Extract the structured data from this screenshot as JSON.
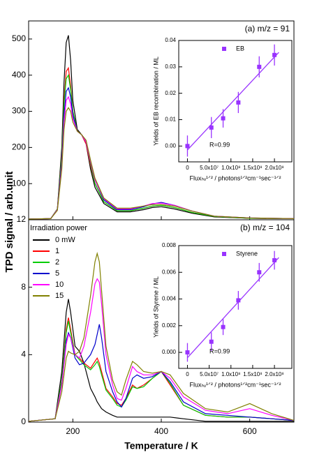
{
  "chart_data": [
    {
      "type": "line",
      "annotation": "(a) m/z = 91",
      "ylabel": "TPD signal / arb.unit",
      "xlim": [
        100,
        700
      ],
      "xticks": [
        200,
        400,
        600
      ],
      "ylim": [
        0,
        550
      ],
      "yticks": [
        100,
        200,
        300,
        400,
        500
      ],
      "x": [
        100,
        150,
        165,
        175,
        180,
        185,
        190,
        195,
        200,
        210,
        220,
        230,
        240,
        250,
        270,
        300,
        330,
        360,
        380,
        400,
        430,
        470,
        520,
        600,
        700
      ],
      "series": [
        {
          "color": "#000000",
          "values": [
            2,
            3,
            30,
            200,
            380,
            490,
            510,
            440,
            330,
            250,
            235,
            210,
            140,
            90,
            45,
            22,
            22,
            28,
            34,
            36,
            30,
            18,
            8,
            4,
            3
          ]
        },
        {
          "color": "#ff0000",
          "values": [
            2,
            3,
            30,
            180,
            330,
            410,
            420,
            370,
            300,
            245,
            235,
            210,
            150,
            100,
            50,
            25,
            25,
            32,
            38,
            40,
            34,
            20,
            9,
            4,
            3
          ]
        },
        {
          "color": "#00cc00",
          "values": [
            2,
            3,
            30,
            175,
            320,
            390,
            400,
            360,
            300,
            245,
            235,
            215,
            155,
            100,
            50,
            25,
            25,
            32,
            38,
            40,
            34,
            20,
            9,
            4,
            3
          ]
        },
        {
          "color": "#0000cc",
          "values": [
            2,
            3,
            28,
            160,
            290,
            355,
            365,
            340,
            290,
            245,
            235,
            215,
            160,
            110,
            55,
            28,
            28,
            36,
            44,
            48,
            40,
            24,
            10,
            5,
            3
          ]
        },
        {
          "color": "#ff00ff",
          "values": [
            2,
            3,
            28,
            150,
            270,
            330,
            340,
            320,
            280,
            245,
            235,
            215,
            160,
            110,
            58,
            30,
            30,
            38,
            45,
            46,
            40,
            24,
            10,
            5,
            3
          ]
        },
        {
          "color": "#808000",
          "values": [
            2,
            3,
            26,
            140,
            250,
            300,
            310,
            300,
            270,
            245,
            235,
            220,
            165,
            115,
            60,
            32,
            32,
            38,
            42,
            42,
            38,
            24,
            10,
            5,
            3
          ]
        }
      ]
    },
    {
      "type": "line",
      "annotation": "(b) m/z = 104",
      "xlabel": "Temperature / K",
      "legend_title": "Irradiation power",
      "xlim": [
        100,
        700
      ],
      "xticks": [
        200,
        400,
        600
      ],
      "ylim": [
        0,
        12
      ],
      "yticks": [
        0,
        4,
        8,
        12
      ],
      "x": [
        100,
        160,
        175,
        185,
        190,
        195,
        205,
        215,
        225,
        240,
        250,
        255,
        260,
        265,
        275,
        290,
        300,
        310,
        320,
        335,
        345,
        360,
        380,
        400,
        420,
        450,
        500,
        550,
        600,
        650,
        700
      ],
      "series": [
        {
          "name": "0 mW",
          "color": "#000000",
          "values": [
            0.05,
            0.2,
            3,
            6.5,
            7.3,
            6.5,
            4.5,
            4.2,
            3.5,
            2,
            1.5,
            1.2,
            1,
            0.8,
            0.6,
            0.4,
            0.3,
            0.3,
            0.3,
            0.3,
            0.3,
            0.3,
            0.3,
            0.3,
            0.3,
            0.2,
            0.05,
            0.05,
            0.05,
            0.05,
            0.05
          ]
        },
        {
          "name": "1",
          "color": "#ff0000",
          "values": [
            0.05,
            0.2,
            2.5,
            5.5,
            6.2,
            5.5,
            4,
            3.8,
            3.5,
            3.2,
            3.6,
            3.8,
            3.5,
            3,
            2,
            1.5,
            1.1,
            1,
            1.4,
            2.2,
            2,
            2.2,
            2.6,
            3,
            2.2,
            1,
            0.4,
            0.3,
            0.3,
            0.2,
            0.1
          ]
        },
        {
          "name": "2",
          "color": "#00cc00",
          "values": [
            0.05,
            0.2,
            2.5,
            5.3,
            6,
            5.3,
            4,
            3.7,
            3.4,
            3.1,
            3.4,
            3.6,
            3.3,
            2.8,
            1.9,
            1.4,
            1,
            0.9,
            1.3,
            2.1,
            2,
            2.1,
            2.6,
            3,
            2.3,
            1,
            0.4,
            0.3,
            0.3,
            0.2,
            0.1
          ]
        },
        {
          "name": "5",
          "color": "#0000cc",
          "values": [
            0.05,
            0.2,
            2.2,
            4.8,
            5.3,
            5,
            3.8,
            3.4,
            3.5,
            4,
            4.6,
            5.2,
            5.8,
            5,
            3,
            1.8,
            1.2,
            0.9,
            1.4,
            2.6,
            2.8,
            2.6,
            2.7,
            3,
            2.4,
            1.2,
            0.5,
            0.4,
            0.3,
            0.2,
            0.1
          ]
        },
        {
          "name": "10",
          "color": "#ff00ff",
          "values": [
            0.05,
            0.2,
            2.2,
            4.6,
            5.2,
            5,
            4,
            3.8,
            4.5,
            6.5,
            8.2,
            8.5,
            8.3,
            7,
            4,
            2.2,
            1.4,
            1.3,
            2,
            3.3,
            3,
            2.8,
            2.8,
            3,
            2.6,
            1.5,
            0.7,
            0.5,
            0.8,
            0.4,
            0.1
          ]
        },
        {
          "name": "15",
          "color": "#808000",
          "values": [
            0.05,
            0.2,
            1.8,
            3.8,
            4.2,
            4.1,
            4,
            4.2,
            5,
            7.5,
            9.5,
            10,
            9.5,
            7.8,
            4.5,
            2.5,
            1.8,
            1.6,
            2.5,
            3.6,
            3.4,
            3,
            2.9,
            3,
            2.8,
            1.7,
            0.8,
            0.6,
            1.1,
            0.5,
            0.1
          ]
        }
      ]
    },
    {
      "type": "scatter",
      "annotation": "R=0.99",
      "ylabel": "Yields of EB recombination / ML",
      "xlabel": "Fluxₕᵥ¹ᐟ² / photons¹ᐟ²cm⁻¹sec⁻¹ᐟ²",
      "xlim": [
        -20000000,
        240000000
      ],
      "xticks": [
        0,
        {
          "value": 50000000,
          "label": "5.0x10⁷"
        },
        {
          "value": 100000000,
          "label": "1.0x10⁸"
        },
        {
          "value": 150000000,
          "label": "1.5x10⁸"
        },
        {
          "value": 200000000,
          "label": "2.0x10⁸"
        }
      ],
      "ylim": [
        -0.006,
        0.04
      ],
      "yticks": [
        {
          "value": 0,
          "label": "0.00"
        },
        {
          "value": 0.01,
          "label": "0.01"
        },
        {
          "value": 0.02,
          "label": "0.02"
        },
        {
          "value": 0.03,
          "label": "0.03"
        },
        {
          "value": 0.04,
          "label": "0.04"
        }
      ],
      "series": [
        {
          "name": "EB",
          "color": "#9933ff",
          "x": [
            0,
            55000000,
            82000000,
            117000000,
            165000000,
            200000000
          ],
          "values": [
            0,
            0.007,
            0.0105,
            0.0165,
            0.03,
            0.0345
          ],
          "errors": [
            0.004,
            0.004,
            0.0035,
            0.004,
            0.004,
            0.004
          ]
        }
      ],
      "fit_x": [
        0,
        210000000
      ],
      "fit_y": [
        -0.0015,
        0.0355
      ]
    },
    {
      "type": "scatter",
      "annotation": "R=0.99",
      "ylabel": "Yields of Styrene / ML",
      "xlabel": "Fluxₕᵥ¹ᐟ² / photons¹ᐟ²cm⁻¹sec⁻¹ᐟ²",
      "xlim": [
        -20000000,
        240000000
      ],
      "xticks": [
        0,
        {
          "value": 50000000,
          "label": "5.0x10⁷"
        },
        {
          "value": 100000000,
          "label": "1.0x10⁸"
        },
        {
          "value": 150000000,
          "label": "1.5x10⁸"
        },
        {
          "value": 200000000,
          "label": "2.0x10⁸"
        }
      ],
      "ylim": [
        -0.0012,
        0.008
      ],
      "yticks": [
        {
          "value": 0,
          "label": "0.000"
        },
        {
          "value": 0.002,
          "label": "0.002"
        },
        {
          "value": 0.004,
          "label": "0.004"
        },
        {
          "value": 0.006,
          "label": "0.006"
        },
        {
          "value": 0.008,
          "label": "0.008"
        }
      ],
      "series": [
        {
          "name": "Styrene",
          "color": "#9933ff",
          "x": [
            0,
            55000000,
            82000000,
            117000000,
            165000000,
            200000000
          ],
          "values": [
            0,
            0.0008,
            0.0019,
            0.0039,
            0.006,
            0.0069
          ],
          "errors": [
            0.0007,
            0.0007,
            0.0006,
            0.0007,
            0.0007,
            0.0007
          ]
        }
      ],
      "fit_x": [
        0,
        210000000
      ],
      "fit_y": [
        -0.0004,
        0.0071
      ]
    }
  ]
}
